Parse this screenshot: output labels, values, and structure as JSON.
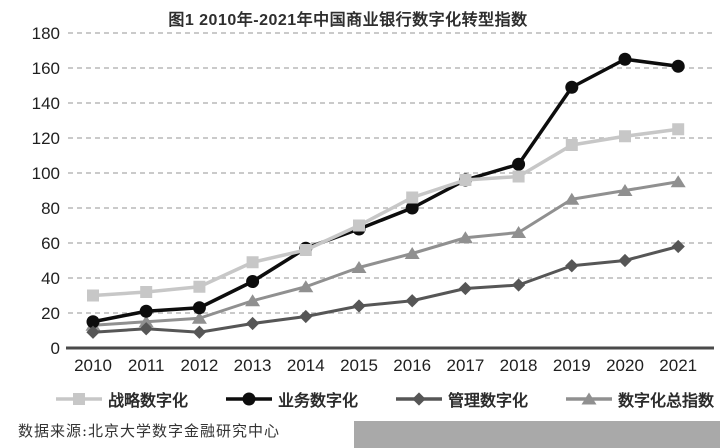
{
  "page": {
    "background": "#ffffff"
  },
  "chart_data": {
    "type": "line",
    "title": "图1 2010年-2021年中国商业银行数字化转型指数",
    "source": "数据来源:北京大学数字金融研究中心",
    "categories": [
      "2010",
      "2011",
      "2012",
      "2013",
      "2014",
      "2015",
      "2016",
      "2017",
      "2018",
      "2019",
      "2020",
      "2021"
    ],
    "series": [
      {
        "name": "战略数字化",
        "marker": "square",
        "color": "#c7c7c7",
        "line_width": 3.5,
        "values": [
          30,
          32,
          35,
          49,
          56,
          70,
          86,
          96,
          98,
          116,
          121,
          125
        ]
      },
      {
        "name": "业务数字化",
        "marker": "circle",
        "color": "#0d0d0d",
        "line_width": 3.5,
        "values": [
          15,
          21,
          23,
          38,
          57,
          68,
          80,
          96,
          105,
          149,
          165,
          161
        ]
      },
      {
        "name": "管理数字化",
        "marker": "diamond",
        "color": "#565656",
        "line_width": 3,
        "values": [
          9,
          11,
          9,
          14,
          18,
          24,
          27,
          34,
          36,
          47,
          50,
          58
        ]
      },
      {
        "name": "数字化总指数",
        "marker": "triangle",
        "color": "#909090",
        "line_width": 3,
        "values": [
          13,
          15,
          17,
          27,
          35,
          46,
          54,
          63,
          66,
          85,
          90,
          95
        ]
      }
    ],
    "draw_order": [
      3,
      1,
      0,
      2
    ],
    "ylim": [
      0,
      180
    ],
    "yticks": [
      0,
      20,
      40,
      60,
      80,
      100,
      120,
      140,
      160,
      180
    ],
    "grid": "horizontal-dashed",
    "legend_position": "bottom"
  },
  "colors": {
    "grid": "#b8b8b8",
    "axis": "#4a4a4a",
    "tick_text": "#1f1f1f",
    "bottom_bar": "#a9a9a9"
  }
}
